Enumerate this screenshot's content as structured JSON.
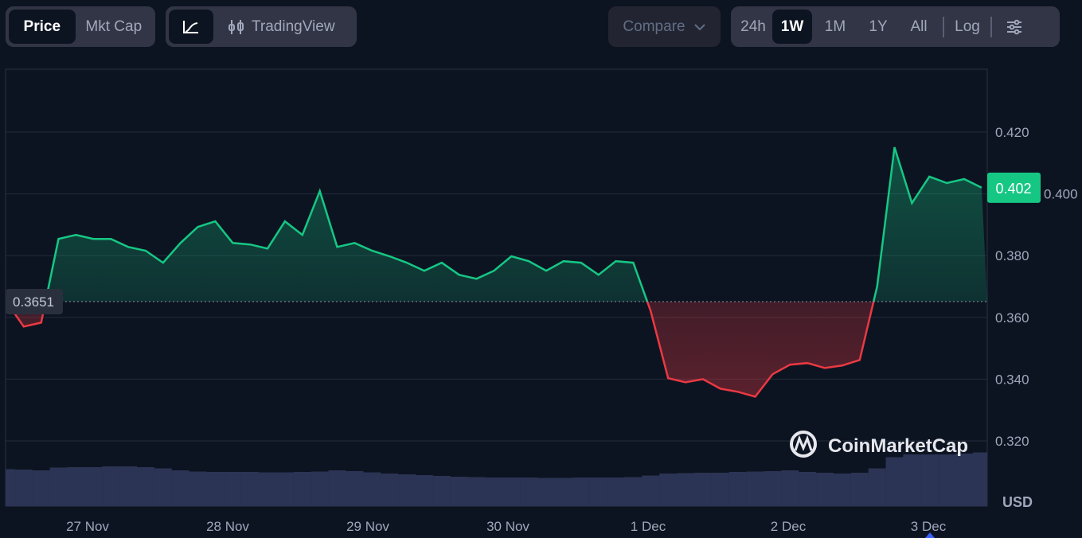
{
  "toolbar": {
    "type_tabs": [
      {
        "label": "Price",
        "active": true
      },
      {
        "label": "Mkt Cap",
        "active": false
      }
    ],
    "chart_style": {
      "line_icon": "line-chart-icon",
      "tradingview_label": "TradingView",
      "tradingview_icon": "candlestick-icon"
    },
    "compare_label": "Compare",
    "ranges": [
      {
        "label": "24h",
        "active": false
      },
      {
        "label": "1W",
        "active": true
      },
      {
        "label": "1M",
        "active": false
      },
      {
        "label": "1Y",
        "active": false
      },
      {
        "label": "All",
        "active": false
      }
    ],
    "log_label": "Log",
    "settings_icon": "sliders-icon"
  },
  "colors": {
    "up": "#16c784",
    "down": "#ea3943",
    "volume": "#2b3454",
    "background": "#0d1421"
  },
  "chart_data": {
    "type": "line",
    "ylim": [
      0.3,
      0.44
    ],
    "y_ticks": [
      "0.420",
      "0.400",
      "0.380",
      "0.360",
      "0.340",
      "0.320"
    ],
    "y_tick_values": [
      0.42,
      0.4,
      0.38,
      0.36,
      0.34,
      0.32
    ],
    "x_ticks": [
      "27 Nov",
      "28 Nov",
      "29 Nov",
      "30 Nov",
      "1 Dec",
      "2 Dec",
      "3 Dec"
    ],
    "x_start": "26 Nov 10:00",
    "x_interval": "3h",
    "baseline": {
      "value": 0.3651,
      "label": "0.3651"
    },
    "current": {
      "value": 0.402,
      "label": "0.402"
    },
    "currency_label": "USD",
    "watermark": "CoinMarketCap",
    "grid": true,
    "series": [
      {
        "values": [
          0.3651,
          0.357,
          0.3583,
          0.3854,
          0.3867,
          0.3854,
          0.3854,
          0.3828,
          0.3816,
          0.3777,
          0.3841,
          0.3893,
          0.3911,
          0.3841,
          0.3836,
          0.3823,
          0.3911,
          0.3867,
          0.4009,
          0.3828,
          0.3841,
          0.3816,
          0.3798,
          0.3777,
          0.3751,
          0.3777,
          0.3738,
          0.3725,
          0.3751,
          0.3798,
          0.3782,
          0.3751,
          0.3782,
          0.3777,
          0.3738,
          0.3782,
          0.3777,
          0.362,
          0.3403,
          0.339,
          0.34,
          0.3369,
          0.3359,
          0.3343,
          0.3416,
          0.3447,
          0.3452,
          0.3436,
          0.3444,
          0.3462,
          0.37,
          0.4151,
          0.397,
          0.4056,
          0.4035,
          0.4048,
          0.402
        ]
      }
    ],
    "volume_relative": [
      0.93,
      0.92,
      0.9,
      0.97,
      0.98,
      0.98,
      1.0,
      1.0,
      0.98,
      0.95,
      0.9,
      0.87,
      0.86,
      0.86,
      0.86,
      0.85,
      0.85,
      0.86,
      0.87,
      0.9,
      0.88,
      0.85,
      0.82,
      0.8,
      0.78,
      0.76,
      0.74,
      0.73,
      0.72,
      0.72,
      0.72,
      0.71,
      0.71,
      0.72,
      0.72,
      0.72,
      0.73,
      0.77,
      0.82,
      0.83,
      0.84,
      0.84,
      0.86,
      0.87,
      0.88,
      0.9,
      0.86,
      0.84,
      0.82,
      0.84,
      0.95,
      1.23,
      1.3,
      1.3,
      1.3,
      1.32,
      1.35
    ]
  }
}
